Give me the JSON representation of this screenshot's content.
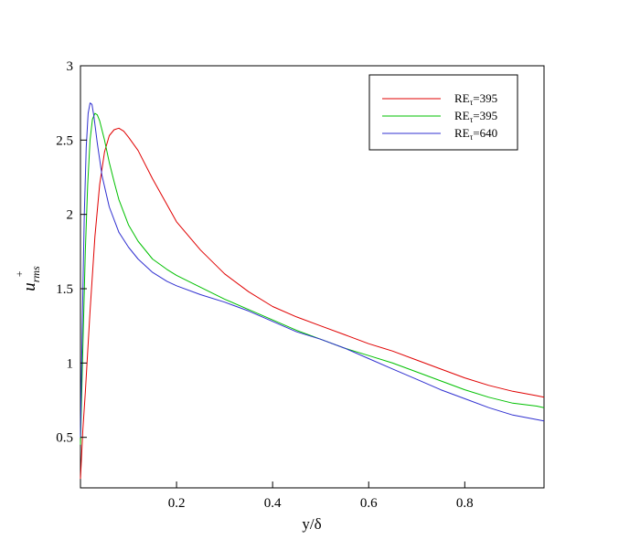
{
  "chart_data": {
    "type": "line",
    "xlabel": "y/δ",
    "ylabel": {
      "main": "u",
      "sub": "rms",
      "sup": "+"
    },
    "xlim": [
      0,
      0.965
    ],
    "ylim": [
      0.16,
      3.0
    ],
    "xticks": [
      {
        "value": 0.2,
        "label": "0.2"
      },
      {
        "value": 0.4,
        "label": "0.4"
      },
      {
        "value": 0.6,
        "label": "0.6"
      },
      {
        "value": 0.8,
        "label": "0.8"
      }
    ],
    "yticks": [
      {
        "value": 0.5,
        "label": "0.5"
      },
      {
        "value": 1.0,
        "label": "1"
      },
      {
        "value": 1.5,
        "label": "1.5"
      },
      {
        "value": 2.0,
        "label": "2"
      },
      {
        "value": 2.5,
        "label": "2.5"
      },
      {
        "value": 3.0,
        "label": "3"
      }
    ],
    "grid": false,
    "legend_position": "top-right",
    "series": [
      {
        "label": {
          "main": "RE",
          "sub": "τ",
          "rest": "=395"
        },
        "color": "#e00000",
        "x": [
          0,
          0.005,
          0.01,
          0.02,
          0.03,
          0.04,
          0.05,
          0.06,
          0.07,
          0.08,
          0.09,
          0.1,
          0.12,
          0.15,
          0.2,
          0.25,
          0.3,
          0.35,
          0.4,
          0.45,
          0.5,
          0.55,
          0.6,
          0.65,
          0.7,
          0.75,
          0.8,
          0.85,
          0.9,
          0.95,
          0.965
        ],
        "y": [
          0.22,
          0.55,
          0.8,
          1.35,
          1.85,
          2.2,
          2.42,
          2.53,
          2.57,
          2.58,
          2.56,
          2.52,
          2.43,
          2.24,
          1.95,
          1.76,
          1.6,
          1.48,
          1.38,
          1.31,
          1.25,
          1.19,
          1.13,
          1.08,
          1.02,
          0.96,
          0.9,
          0.85,
          0.81,
          0.78,
          0.77
        ]
      },
      {
        "label": {
          "main": "RE",
          "sub": "τ",
          "rest": "=395"
        },
        "color": "#00c000",
        "x": [
          0,
          0.005,
          0.01,
          0.015,
          0.02,
          0.025,
          0.03,
          0.035,
          0.04,
          0.05,
          0.06,
          0.07,
          0.08,
          0.1,
          0.12,
          0.15,
          0.18,
          0.2,
          0.25,
          0.3,
          0.35,
          0.4,
          0.45,
          0.5,
          0.55,
          0.6,
          0.65,
          0.7,
          0.75,
          0.8,
          0.85,
          0.9,
          0.95,
          0.965
        ],
        "y": [
          0.45,
          1.1,
          1.75,
          2.2,
          2.5,
          2.64,
          2.68,
          2.67,
          2.63,
          2.5,
          2.35,
          2.22,
          2.1,
          1.93,
          1.82,
          1.7,
          1.63,
          1.59,
          1.51,
          1.43,
          1.36,
          1.29,
          1.22,
          1.16,
          1.1,
          1.05,
          1.0,
          0.94,
          0.88,
          0.82,
          0.77,
          0.73,
          0.71,
          0.7
        ]
      },
      {
        "label": {
          "main": "RE",
          "sub": "τ",
          "rest": "=640"
        },
        "color": "#3030d0",
        "x": [
          0,
          0.004,
          0.008,
          0.012,
          0.016,
          0.02,
          0.024,
          0.028,
          0.035,
          0.045,
          0.06,
          0.08,
          0.1,
          0.12,
          0.15,
          0.18,
          0.2,
          0.25,
          0.3,
          0.35,
          0.4,
          0.45,
          0.5,
          0.55,
          0.6,
          0.65,
          0.7,
          0.75,
          0.8,
          0.85,
          0.9,
          0.95,
          0.965
        ],
        "y": [
          0.5,
          1.3,
          2.0,
          2.45,
          2.68,
          2.75,
          2.74,
          2.66,
          2.48,
          2.26,
          2.05,
          1.88,
          1.78,
          1.7,
          1.61,
          1.55,
          1.52,
          1.46,
          1.41,
          1.35,
          1.28,
          1.21,
          1.16,
          1.1,
          1.03,
          0.96,
          0.89,
          0.82,
          0.76,
          0.7,
          0.65,
          0.62,
          0.61
        ]
      }
    ]
  }
}
